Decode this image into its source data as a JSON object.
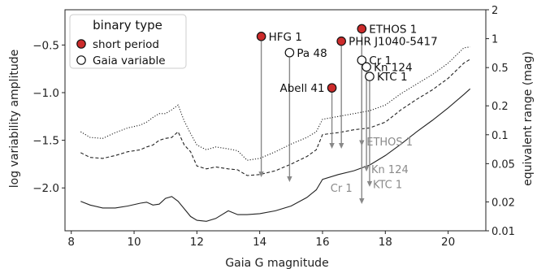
{
  "chart_data": {
    "type": "line",
    "xlabel": "Gaia G magnitude",
    "ylabel": "log variability amplitude",
    "y2label": "equivalent range (mag)",
    "xlim": [
      7.8,
      21.2
    ],
    "ylim": [
      -2.45,
      -0.13
    ],
    "xticks": [
      8,
      10,
      12,
      14,
      16,
      18,
      20
    ],
    "yticks": [
      -2.0,
      -1.5,
      -1.0,
      -0.5
    ],
    "y2ticks": [
      {
        "label": "2",
        "value": 2
      },
      {
        "label": "1",
        "value": 1
      },
      {
        "label": "0.5",
        "value": 0.5
      },
      {
        "label": "0.2",
        "value": 0.2
      },
      {
        "label": "0.1",
        "value": 0.1
      },
      {
        "label": "0.05",
        "value": 0.05
      },
      {
        "label": "0.02",
        "value": 0.02
      },
      {
        "label": "0.01",
        "value": 0.01
      }
    ],
    "legend": {
      "title": "binary type",
      "position": "top-left",
      "items": [
        {
          "label": "short period",
          "fill": "#cc2b2b"
        },
        {
          "label": "Gaia variable",
          "fill": "#ffffff"
        }
      ]
    },
    "series": [
      {
        "style": "solid",
        "x": [
          8.3,
          8.6,
          9.0,
          9.4,
          9.8,
          10.2,
          10.4,
          10.6,
          10.8,
          11.0,
          11.2,
          11.4,
          11.6,
          11.8,
          12.0,
          12.3,
          12.6,
          13.0,
          13.3,
          13.6,
          14.0,
          14.5,
          15.0,
          15.5,
          15.8,
          16.0,
          16.5,
          17.0,
          17.5,
          18.0,
          18.5,
          19.0,
          19.5,
          20.0,
          20.5,
          20.7
        ],
        "y": [
          -2.14,
          -2.18,
          -2.21,
          -2.21,
          -2.19,
          -2.16,
          -2.15,
          -2.18,
          -2.17,
          -2.11,
          -2.09,
          -2.14,
          -2.22,
          -2.3,
          -2.34,
          -2.35,
          -2.32,
          -2.24,
          -2.28,
          -2.28,
          -2.27,
          -2.24,
          -2.19,
          -2.1,
          -2.02,
          -1.91,
          -1.86,
          -1.82,
          -1.76,
          -1.66,
          -1.54,
          -1.41,
          -1.29,
          -1.16,
          -1.02,
          -0.96
        ]
      },
      {
        "style": "dashed",
        "x": [
          8.3,
          8.6,
          9.0,
          9.4,
          9.8,
          10.2,
          10.4,
          10.6,
          10.8,
          11.0,
          11.2,
          11.4,
          11.6,
          11.8,
          12.0,
          12.3,
          12.6,
          13.0,
          13.3,
          13.6,
          14.0,
          14.5,
          15.0,
          15.5,
          15.8,
          16.0,
          16.5,
          17.0,
          17.5,
          18.0,
          18.5,
          19.0,
          19.5,
          20.0,
          20.5,
          20.7
        ],
        "y": [
          -1.63,
          -1.68,
          -1.69,
          -1.66,
          -1.62,
          -1.6,
          -1.57,
          -1.55,
          -1.5,
          -1.48,
          -1.47,
          -1.41,
          -1.55,
          -1.62,
          -1.77,
          -1.8,
          -1.78,
          -1.8,
          -1.81,
          -1.87,
          -1.86,
          -1.82,
          -1.75,
          -1.67,
          -1.6,
          -1.44,
          -1.42,
          -1.39,
          -1.37,
          -1.31,
          -1.18,
          -1.07,
          -0.97,
          -0.85,
          -0.69,
          -0.65
        ]
      },
      {
        "style": "dotted",
        "x": [
          8.3,
          8.6,
          9.0,
          9.4,
          9.8,
          10.2,
          10.4,
          10.6,
          10.8,
          11.0,
          11.2,
          11.4,
          11.6,
          11.8,
          12.0,
          12.3,
          12.6,
          13.0,
          13.3,
          13.6,
          14.0,
          14.5,
          15.0,
          15.5,
          15.8,
          16.0,
          16.5,
          17.0,
          17.5,
          18.0,
          18.5,
          19.0,
          19.5,
          20.0,
          20.5,
          20.7
        ],
        "y": [
          -1.41,
          -1.47,
          -1.48,
          -1.42,
          -1.37,
          -1.34,
          -1.31,
          -1.26,
          -1.22,
          -1.22,
          -1.18,
          -1.13,
          -1.3,
          -1.43,
          -1.55,
          -1.6,
          -1.57,
          -1.59,
          -1.61,
          -1.71,
          -1.69,
          -1.62,
          -1.54,
          -1.47,
          -1.41,
          -1.28,
          -1.25,
          -1.22,
          -1.19,
          -1.13,
          -1.01,
          -0.91,
          -0.81,
          -0.69,
          -0.53,
          -0.52
        ]
      }
    ],
    "points": [
      {
        "label": "HFG 1",
        "x": 14.05,
        "y": -0.41,
        "type": "short period",
        "arrow_to": -1.88,
        "label_side": "right"
      },
      {
        "label": "Pa 48",
        "x": 14.95,
        "y": -0.58,
        "type": "Gaia variable",
        "arrow_to": -1.93,
        "label_side": "right"
      },
      {
        "label": "Abell 41",
        "x": 16.3,
        "y": -0.95,
        "type": "short period",
        "arrow_to": -1.58,
        "label_side": "left"
      },
      {
        "label": "PHR J1040-5417",
        "x": 16.6,
        "y": -0.46,
        "type": "short period",
        "arrow_to": -1.58,
        "label_side": "right"
      },
      {
        "label": "ETHOS 1",
        "x": 17.25,
        "y": -0.33,
        "type": "short period",
        "arrow_to": -1.55,
        "label_side": "right"
      },
      {
        "label": "Cr 1",
        "x": 17.25,
        "y": -0.66,
        "type": "Gaia variable",
        "arrow_to": -2.16,
        "label_side": "right"
      },
      {
        "label": "Kn 124",
        "x": 17.4,
        "y": -0.73,
        "type": "Gaia variable",
        "arrow_to": -1.82,
        "label_side": "right"
      },
      {
        "label": "KTC 1",
        "x": 17.5,
        "y": -0.83,
        "type": "Gaia variable",
        "arrow_to": -1.98,
        "label_side": "right"
      }
    ],
    "arrow_labels": [
      {
        "text": "ETHOS 1",
        "x": 17.3,
        "y": -1.51
      },
      {
        "text": "Kn 124",
        "x": 17.45,
        "y": -1.8
      },
      {
        "text": "KTC 1",
        "x": 17.5,
        "y": -1.96
      },
      {
        "text": "Cr 1",
        "x": 16.15,
        "y": -2.0
      }
    ]
  }
}
